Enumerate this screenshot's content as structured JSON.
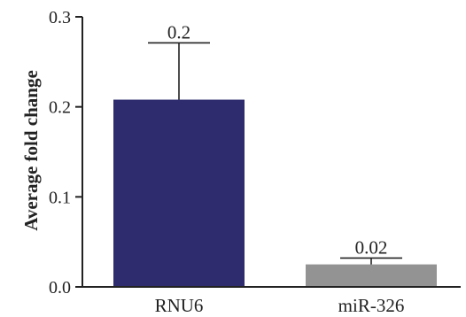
{
  "chart_data": {
    "type": "bar",
    "categories": [
      "RNU6",
      "miR-326"
    ],
    "values": [
      0.208,
      0.025
    ],
    "errors": [
      0.063,
      0.007
    ],
    "annotations": [
      "0.2",
      "0.02"
    ],
    "colors": [
      "#2e2c6e",
      "#939393"
    ],
    "ylabel": "Average fold change",
    "ylim": [
      0,
      0.3
    ],
    "yticks": [
      "0.0",
      "0.1",
      "0.2",
      "0.3"
    ],
    "grid": false
  }
}
